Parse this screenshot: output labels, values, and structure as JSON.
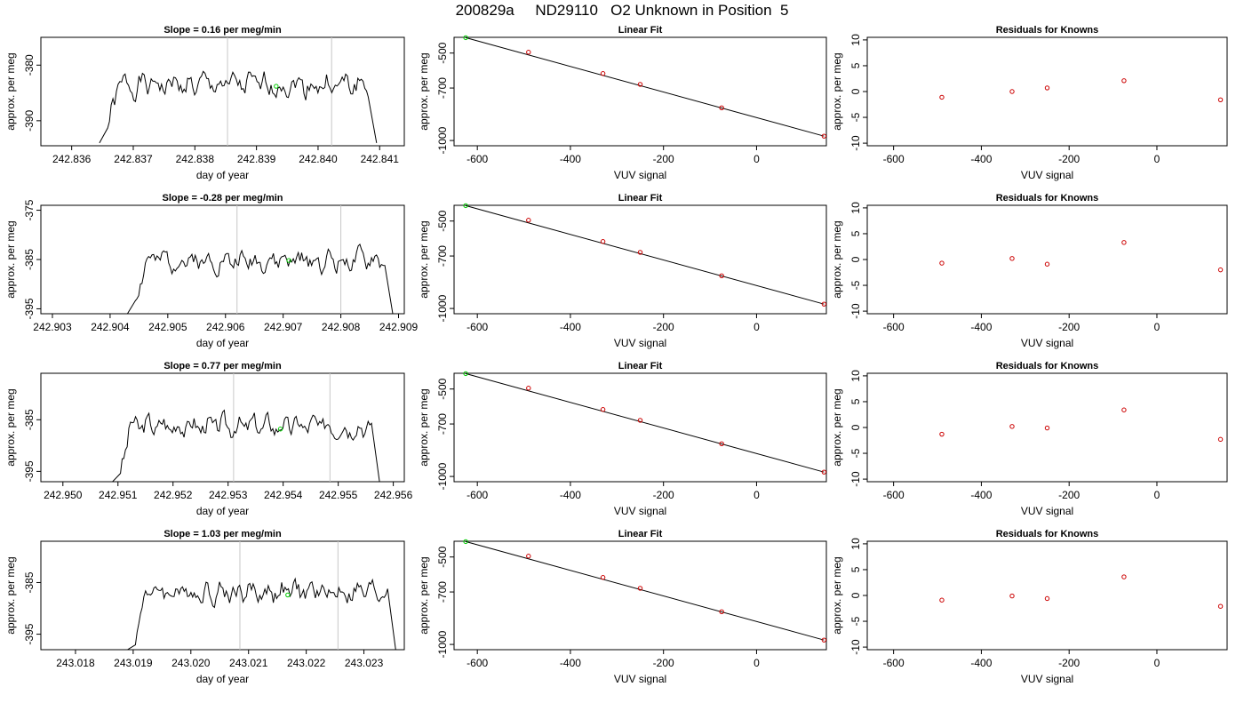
{
  "title": "200829a     ND29110   O2 Unknown in Position  5",
  "colors": {
    "line": "#000000",
    "ref_line": "#c8c8c8",
    "known_point": "#cc0000",
    "unknown_point": "#00cc00",
    "frame": "#000000"
  },
  "chart_data": [
    {
      "row": 1,
      "timeseries": {
        "type": "line",
        "title": "Slope =  0.16  per meg/min",
        "xlabel": "day of year",
        "ylabel": "approx. per meg",
        "xlim": [
          242.8355,
          242.8414
        ],
        "ylim": [
          -394.5,
          -375
        ],
        "xticks": [
          "242.836",
          "242.837",
          "242.838",
          "242.839",
          "242.840",
          "242.841"
        ],
        "yticks": [
          -390,
          -380
        ],
        "start": 242.83645,
        "end": 242.84095,
        "mean": -383.6,
        "amp": 2.8,
        "edge": -394,
        "seed": 1,
        "ref_lines": [
          242.83853,
          242.84022
        ],
        "unknown_point": {
          "x": 242.83932,
          "y": -383.8
        }
      },
      "fit": {
        "type": "scatter",
        "title": "Linear Fit",
        "xlabel": "VUV signal",
        "ylabel": "approx. per meg",
        "xlim": [
          -650,
          150
        ],
        "ylim": [
          -1030,
          -410
        ],
        "xticks": [
          -600,
          -400,
          -200,
          0
        ],
        "yticks": [
          -1000,
          -700,
          -500
        ],
        "known_points": [
          [
            -490,
            -495
          ],
          [
            -330,
            -617
          ],
          [
            -250,
            -679
          ],
          [
            -75,
            -813
          ],
          [
            145,
            -975
          ]
        ],
        "unknown_point": [
          -625,
          -412
        ],
        "line": [
          [
            -625,
            -412
          ],
          [
            145,
            -975
          ]
        ]
      },
      "residuals": {
        "type": "scatter",
        "title": "Residuals for Knowns",
        "xlabel": "VUV signal",
        "ylabel": "approx. per meg",
        "xlim": [
          -660,
          160
        ],
        "ylim": [
          -10.5,
          10.5
        ],
        "xticks": [
          -600,
          -400,
          -200,
          0
        ],
        "yticks": [
          -10,
          -5,
          0,
          5,
          10
        ],
        "points": [
          [
            -490,
            -1.1
          ],
          [
            -330,
            0.0
          ],
          [
            -250,
            0.7
          ],
          [
            -75,
            2.1
          ],
          [
            145,
            -1.6
          ]
        ]
      }
    },
    {
      "row": 2,
      "timeseries": {
        "type": "line",
        "title": "Slope =  -0.28  per meg/min",
        "xlabel": "day of year",
        "ylabel": "approx. per meg",
        "xlim": [
          242.9028,
          242.9091
        ],
        "ylim": [
          -396,
          -374
        ],
        "xticks": [
          "242.903",
          "242.904",
          "242.905",
          "242.906",
          "242.907",
          "242.908",
          "242.909"
        ],
        "yticks": [
          -395,
          -385,
          -375
        ],
        "start": 242.9043,
        "end": 242.9089,
        "mean": -385.2,
        "amp": 2.8,
        "edge": -396,
        "seed": 2,
        "ref_lines": [
          242.9062,
          242.908
        ],
        "unknown_point": {
          "x": 242.9071,
          "y": -385.2
        }
      },
      "fit": {
        "type": "scatter",
        "title": "Linear Fit",
        "xlabel": "VUV signal",
        "ylabel": "approx. per meg",
        "xlim": [
          -650,
          150
        ],
        "ylim": [
          -1030,
          -410
        ],
        "xticks": [
          -600,
          -400,
          -200,
          0
        ],
        "yticks": [
          -1000,
          -700,
          -500
        ],
        "known_points": [
          [
            -490,
            -495
          ],
          [
            -330,
            -617
          ],
          [
            -250,
            -679
          ],
          [
            -75,
            -813
          ],
          [
            145,
            -975
          ]
        ],
        "unknown_point": [
          -625,
          -412
        ],
        "line": [
          [
            -625,
            -412
          ],
          [
            145,
            -975
          ]
        ]
      },
      "residuals": {
        "type": "scatter",
        "title": "Residuals for Knowns",
        "xlabel": "VUV signal",
        "ylabel": "approx. per meg",
        "xlim": [
          -660,
          160
        ],
        "ylim": [
          -10.5,
          10.5
        ],
        "xticks": [
          -600,
          -400,
          -200,
          0
        ],
        "yticks": [
          -10,
          -5,
          0,
          5,
          10
        ],
        "points": [
          [
            -490,
            -0.7
          ],
          [
            -330,
            0.2
          ],
          [
            -250,
            -0.9
          ],
          [
            -75,
            3.3
          ],
          [
            145,
            -2.0
          ]
        ]
      }
    },
    {
      "row": 3,
      "timeseries": {
        "type": "line",
        "title": "Slope =  0.77  per meg/min",
        "xlabel": "day of year",
        "ylabel": "approx. per meg",
        "xlim": [
          242.9496,
          242.9562
        ],
        "ylim": [
          -397,
          -376
        ],
        "xticks": [
          "242.950",
          "242.951",
          "242.952",
          "242.953",
          "242.954",
          "242.955",
          "242.956"
        ],
        "yticks": [
          -395,
          -385
        ],
        "start": 242.9509,
        "end": 242.95575,
        "mean": -386.2,
        "amp": 2.8,
        "edge": -397,
        "seed": 3,
        "ref_lines": [
          242.9531,
          242.95485
        ],
        "unknown_point": {
          "x": 242.95395,
          "y": -386.8
        }
      },
      "fit": {
        "type": "scatter",
        "title": "Linear Fit",
        "xlabel": "VUV signal",
        "ylabel": "approx. per meg",
        "xlim": [
          -650,
          150
        ],
        "ylim": [
          -1030,
          -410
        ],
        "xticks": [
          -600,
          -400,
          -200,
          0
        ],
        "yticks": [
          -1000,
          -700,
          -500
        ],
        "known_points": [
          [
            -490,
            -495
          ],
          [
            -330,
            -617
          ],
          [
            -250,
            -679
          ],
          [
            -75,
            -813
          ],
          [
            145,
            -975
          ]
        ],
        "unknown_point": [
          -625,
          -412
        ],
        "line": [
          [
            -625,
            -412
          ],
          [
            145,
            -975
          ]
        ]
      },
      "residuals": {
        "type": "scatter",
        "title": "Residuals for Knowns",
        "xlabel": "VUV signal",
        "ylabel": "approx. per meg",
        "xlim": [
          -660,
          160
        ],
        "ylim": [
          -10.5,
          10.5
        ],
        "xticks": [
          -600,
          -400,
          -200,
          0
        ],
        "yticks": [
          -10,
          -5,
          0,
          5,
          10
        ],
        "points": [
          [
            -490,
            -1.3
          ],
          [
            -330,
            0.2
          ],
          [
            -250,
            -0.1
          ],
          [
            -75,
            3.4
          ],
          [
            145,
            -2.3
          ]
        ]
      }
    },
    {
      "row": 4,
      "timeseries": {
        "type": "line",
        "title": "Slope =  1.03  per meg/min",
        "xlabel": "day of year",
        "ylabel": "approx. per meg",
        "xlim": [
          243.0174,
          243.0237
        ],
        "ylim": [
          -398,
          -377
        ],
        "xticks": [
          "243.018",
          "243.019",
          "243.020",
          "243.021",
          "243.022",
          "243.023"
        ],
        "yticks": [
          -395,
          -385
        ],
        "start": 243.0189,
        "end": 243.02355,
        "mean": -386.8,
        "amp": 2.8,
        "edge": -398,
        "seed": 4,
        "ref_lines": [
          243.02085,
          243.02255
        ],
        "unknown_point": {
          "x": 243.02168,
          "y": -387.4
        }
      },
      "fit": {
        "type": "scatter",
        "title": "Linear Fit",
        "xlabel": "VUV signal",
        "ylabel": "approx. per meg",
        "xlim": [
          -650,
          150
        ],
        "ylim": [
          -1030,
          -410
        ],
        "xticks": [
          -600,
          -400,
          -200,
          0
        ],
        "yticks": [
          -1000,
          -700,
          -500
        ],
        "known_points": [
          [
            -490,
            -495
          ],
          [
            -330,
            -617
          ],
          [
            -250,
            -679
          ],
          [
            -75,
            -813
          ],
          [
            145,
            -975
          ]
        ],
        "unknown_point": [
          -625,
          -412
        ],
        "line": [
          [
            -625,
            -412
          ],
          [
            145,
            -975
          ]
        ]
      },
      "residuals": {
        "type": "scatter",
        "title": "Residuals for Knowns",
        "xlabel": "VUV signal",
        "ylabel": "approx. per meg",
        "xlim": [
          -660,
          160
        ],
        "ylim": [
          -10.5,
          10.5
        ],
        "xticks": [
          -600,
          -400,
          -200,
          0
        ],
        "yticks": [
          -10,
          -5,
          0,
          5,
          10
        ],
        "points": [
          [
            -490,
            -0.9
          ],
          [
            -330,
            -0.1
          ],
          [
            -250,
            -0.6
          ],
          [
            -75,
            3.6
          ],
          [
            145,
            -2.1
          ]
        ]
      }
    }
  ]
}
